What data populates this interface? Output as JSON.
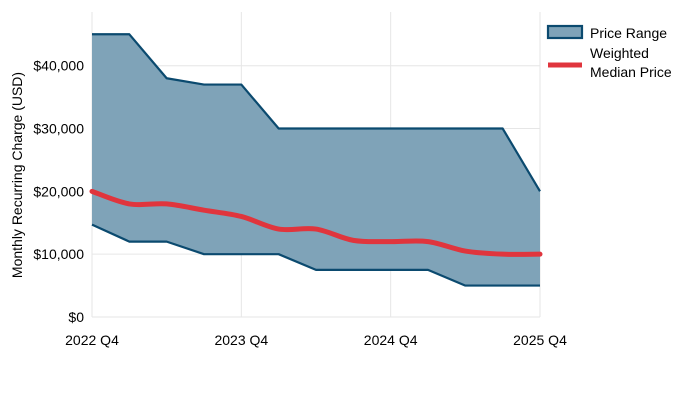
{
  "chart_data": {
    "type": "area",
    "ylabel": "Monthly Recurring Charge (USD)",
    "x": [
      "2022 Q4",
      "2023 Q1",
      "2023 Q2",
      "2023 Q3",
      "2023 Q4",
      "2024 Q1",
      "2024 Q2",
      "2024 Q3",
      "2024 Q4",
      "2025 Q1",
      "2025 Q2",
      "2025 Q3",
      "2025 Q4"
    ],
    "x_tick_labels": [
      "2022 Q4",
      "2023 Q4",
      "2024 Q4",
      "2025 Q4"
    ],
    "y_tick_labels": [
      "$0",
      "$10,000",
      "$20,000",
      "$30,000",
      "$40,000"
    ],
    "ylim": [
      0,
      46000
    ],
    "grid": true,
    "legend_position": "top-right",
    "series": [
      {
        "name": "Price Range",
        "kind": "band",
        "upper": [
          45000,
          45000,
          38000,
          37000,
          37000,
          30000,
          30000,
          30000,
          30000,
          30000,
          30000,
          30000,
          20000
        ],
        "lower": [
          14700,
          12000,
          12000,
          10000,
          10000,
          10000,
          7500,
          7500,
          7500,
          7500,
          5000,
          5000,
          5000
        ],
        "fill_color": "#7fa3b8",
        "line_color": "#0b4a6f"
      },
      {
        "name": "Weighted Median Price",
        "kind": "line",
        "values": [
          20000,
          18000,
          18000,
          17000,
          16000,
          14000,
          14000,
          12200,
          12000,
          12000,
          10500,
          10000,
          10000
        ],
        "color": "#e0353d"
      }
    ],
    "legend": [
      "Price Range",
      "Weighted\nMedian Price"
    ]
  }
}
